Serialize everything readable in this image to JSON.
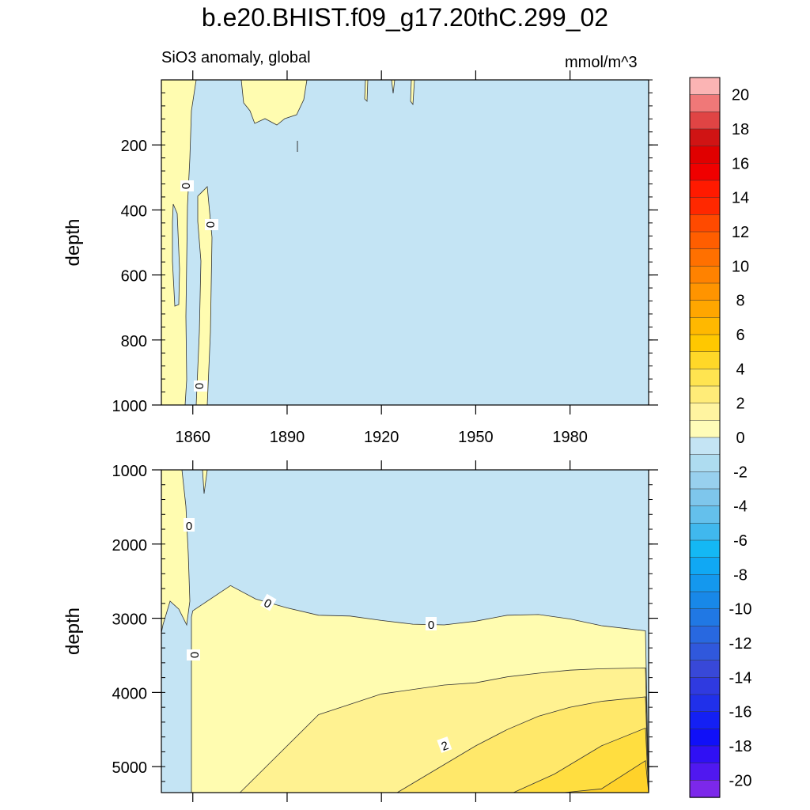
{
  "title": "b.e20.BHIST.f09_g17.20thC.299_02",
  "subtitle_left": "SiO3 anomaly, global",
  "subtitle_right": "mmol/m^3",
  "colors": {
    "neg_fill": "#c4e4f4",
    "zero_two": "#fffcb0",
    "two_four_a": "#fff291",
    "two_four_b": "#ffe86a",
    "four_six": "#ffde40",
    "line": "#333333"
  },
  "chart_data": [
    {
      "type": "contour",
      "panel": "upper",
      "variable": "SiO3 anomaly, global",
      "units": "mmol/m^3",
      "xlabel": "",
      "ylabel": "depth",
      "xlim": [
        1850,
        2005
      ],
      "ylim": [
        1000,
        0
      ],
      "x_ticks": [
        1860,
        1890,
        1920,
        1950,
        1980
      ],
      "y_ticks": [
        200,
        400,
        600,
        800,
        1000
      ],
      "contour_labels": [
        "0",
        "0",
        "0"
      ],
      "regions": [
        {
          "level_range": [
            0,
            1
          ],
          "description_years": [
            1850,
            1866
          ],
          "depth_range": [
            0,
            1000
          ]
        },
        {
          "level_range": [
            0,
            1
          ],
          "description_years": [
            1876,
            1895
          ],
          "depth_range": [
            0,
            130
          ]
        },
        {
          "level_range": [
            -1,
            0
          ],
          "description_years": [
            1866,
            2005
          ],
          "depth_range": [
            0,
            1000
          ]
        }
      ]
    },
    {
      "type": "contour",
      "panel": "lower",
      "variable": "SiO3 anomaly, global",
      "units": "mmol/m^3",
      "xlabel": "",
      "ylabel": "depth",
      "xlim": [
        1850,
        2005
      ],
      "ylim": [
        5350,
        1000
      ],
      "x_ticks": [
        1860,
        1890,
        1920,
        1950,
        1980
      ],
      "y_ticks": [
        1000,
        2000,
        3000,
        4000,
        5000
      ],
      "contour_labels": [
        "0",
        "0",
        "0",
        "0",
        "2"
      ],
      "zero_contour_depth": {
        "x": [
          1860,
          1872,
          1880,
          1890,
          1900,
          1910,
          1920,
          1930,
          1940,
          1950,
          1960,
          1970,
          1980,
          1990,
          2004
        ],
        "y": [
          2900,
          2560,
          2740,
          2860,
          2960,
          2970,
          3030,
          3080,
          3090,
          3040,
          2960,
          2950,
          3010,
          3100,
          3170
        ]
      },
      "one_contour_depth": {
        "x": [
          1875,
          1900,
          1920,
          1940,
          1950,
          1960,
          1970,
          1980,
          1990,
          2004
        ],
        "y": [
          5350,
          4300,
          4020,
          3900,
          3870,
          3790,
          3740,
          3700,
          3680,
          3670
        ]
      },
      "two_contour_depth": {
        "x": [
          1925,
          1950,
          1960,
          1970,
          1980,
          1990,
          2004
        ],
        "y": [
          5350,
          4720,
          4500,
          4320,
          4200,
          4120,
          4060
        ]
      },
      "three_contour_depth": {
        "x": [
          1975,
          1990,
          2004
        ],
        "y": [
          5100,
          4720,
          4480
        ]
      },
      "four_contour_depth": {
        "x": [
          1990,
          2004
        ],
        "y": [
          5300,
          4920
        ]
      }
    }
  ],
  "colorbar": {
    "labels": [
      "20",
      "18",
      "16",
      "14",
      "12",
      "10",
      "8",
      "6",
      "4",
      "2",
      "0",
      "-2",
      "-4",
      "-6",
      "-8",
      "-10",
      "-12",
      "-14",
      "-16",
      "-18",
      "-20"
    ],
    "colors": [
      "#fbb4b4",
      "#f07878",
      "#e04444",
      "#d01414",
      "#e00000",
      "#f00000",
      "#ff1a00",
      "#ff2800",
      "#ff4a00",
      "#ff5e00",
      "#ff7000",
      "#ff8200",
      "#ff9400",
      "#ffa600",
      "#ffb800",
      "#ffc800",
      "#ffd828",
      "#ffe450",
      "#ffec78",
      "#fff4a0",
      "#fffcb8",
      "#c4e4f4",
      "#aedcf0",
      "#98d0ee",
      "#7ec6ec",
      "#64c0ec",
      "#40b8ee",
      "#14b8f4",
      "#10a8f4",
      "#1498ee",
      "#1888e8",
      "#2078e4",
      "#2868e0",
      "#3058dc",
      "#3848d8",
      "#2f3ae0",
      "#2030ea",
      "#1420f4",
      "#1010f8",
      "#3010f4",
      "#5018f0",
      "#7c28ea"
    ]
  }
}
